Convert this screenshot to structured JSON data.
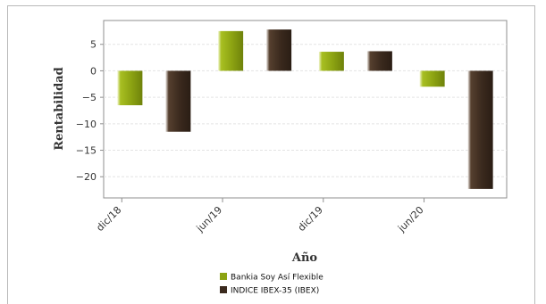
{
  "chart_data": {
    "type": "bar",
    "categories": [
      "dic/18",
      "jun/19",
      "dic/19",
      "jun/20"
    ],
    "series": [
      {
        "name": "Bankia Soy Así Flexible",
        "color": "#8ca312",
        "values": [
          -6.5,
          7.5,
          3.6,
          -3.0
        ]
      },
      {
        "name": "INDICE IBEX-35 (IBEX)",
        "color": "#3b2a1e",
        "values": [
          -11.5,
          7.8,
          3.7,
          -22.3
        ]
      }
    ],
    "title": "",
    "xlabel": "Año",
    "ylabel": "Rentabilidad",
    "ylim": [
      -24,
      9.5
    ],
    "yticks": [
      5,
      0,
      -5,
      -10,
      -15,
      -20
    ],
    "grid": true,
    "legend_position": "bottom-center"
  }
}
